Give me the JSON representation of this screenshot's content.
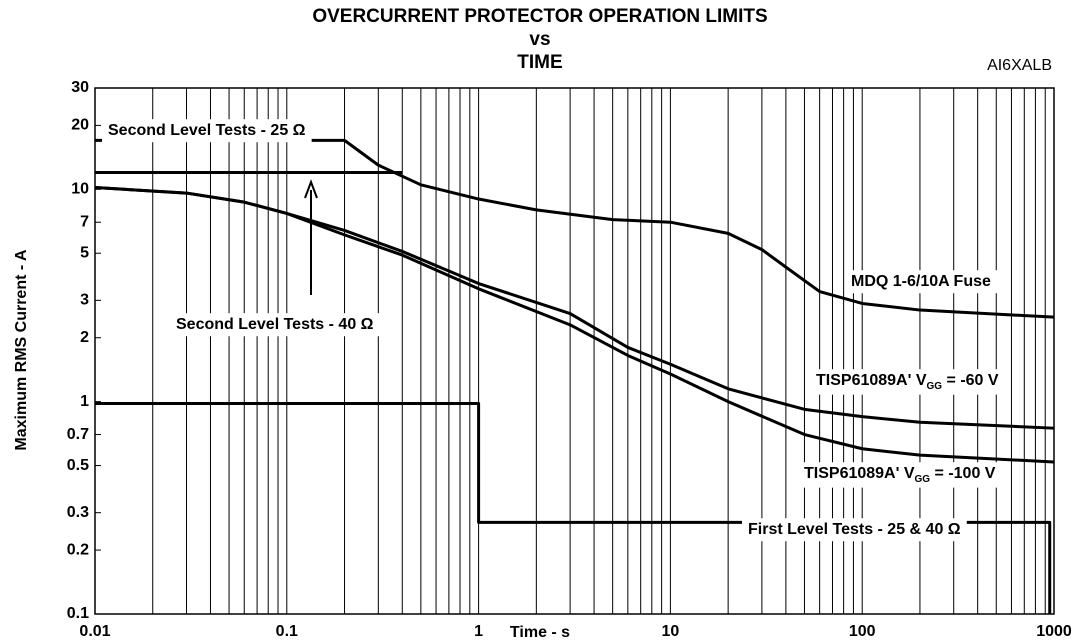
{
  "chart_data": {
    "type": "line",
    "title": [
      "OVERCURRENT PROTECTOR OPERATION LIMITS",
      "vs",
      "TIME"
    ],
    "corner_label": "AI6XALB",
    "xlabel": "Time - s",
    "ylabel": "Maximum RMS Current - A",
    "xscale": "log",
    "yscale": "log",
    "xlim": [
      0.01,
      1000
    ],
    "ylim": [
      0.1,
      30
    ],
    "xticks": [
      0.01,
      0.1,
      1,
      10,
      100,
      1000
    ],
    "yticks": [
      0.1,
      0.2,
      0.3,
      0.5,
      0.7,
      1,
      2,
      3,
      5,
      7,
      10,
      20,
      30
    ],
    "grid": "x",
    "series": [
      {
        "color": "#000000",
        "x": [
          0.01,
          0.2
        ],
        "values": [
          17,
          17
        ]
      },
      {
        "color": "#000000",
        "x": [
          0.01,
          0.4
        ],
        "values": [
          12,
          12
        ]
      },
      {
        "color": "#000000",
        "x": [
          0.2,
          0.3,
          0.5,
          1,
          2,
          5,
          10,
          20,
          30,
          40,
          60,
          100,
          200,
          1000
        ],
        "values": [
          17,
          13,
          10.5,
          9,
          8,
          7.2,
          7,
          6.2,
          5.2,
          4.3,
          3.3,
          2.9,
          2.7,
          2.5
        ]
      },
      {
        "color": "#000000",
        "x": [
          0.01,
          0.03,
          0.06,
          0.1,
          0.2,
          0.4,
          1,
          3,
          6,
          10,
          20,
          50,
          100,
          200,
          1000
        ],
        "values": [
          10.2,
          9.6,
          8.7,
          7.7,
          6.4,
          5.1,
          3.6,
          2.6,
          1.8,
          1.5,
          1.15,
          0.92,
          0.85,
          0.8,
          0.75
        ]
      },
      {
        "color": "#000000",
        "x": [
          0.01,
          0.03,
          0.06,
          0.1,
          0.2,
          0.4,
          1,
          3,
          6,
          10,
          20,
          50,
          100,
          200,
          1000
        ],
        "values": [
          10.2,
          9.6,
          8.7,
          7.7,
          6.1,
          4.9,
          3.4,
          2.3,
          1.65,
          1.35,
          1.0,
          0.7,
          0.6,
          0.56,
          0.52
        ]
      },
      {
        "color": "#000000",
        "x": [
          0.01,
          1,
          1,
          950,
          950
        ],
        "values": [
          0.98,
          0.98,
          0.27,
          0.27,
          0.1
        ]
      }
    ],
    "annotations": [
      {
        "text": "Second Level Tests - 25 Ω"
      },
      {
        "text": "Second Level Tests - 40 Ω"
      },
      {
        "text": "MDQ 1-6/10A Fuse"
      },
      {
        "text": "TISP61089A' V",
        "subscript": "GG",
        "text_after": " = -60 V"
      },
      {
        "text": "TISP61089A' V",
        "subscript": "GG",
        "text_after": " = -100 V"
      },
      {
        "text": "First Level Tests - 25 & 40 Ω"
      }
    ]
  }
}
